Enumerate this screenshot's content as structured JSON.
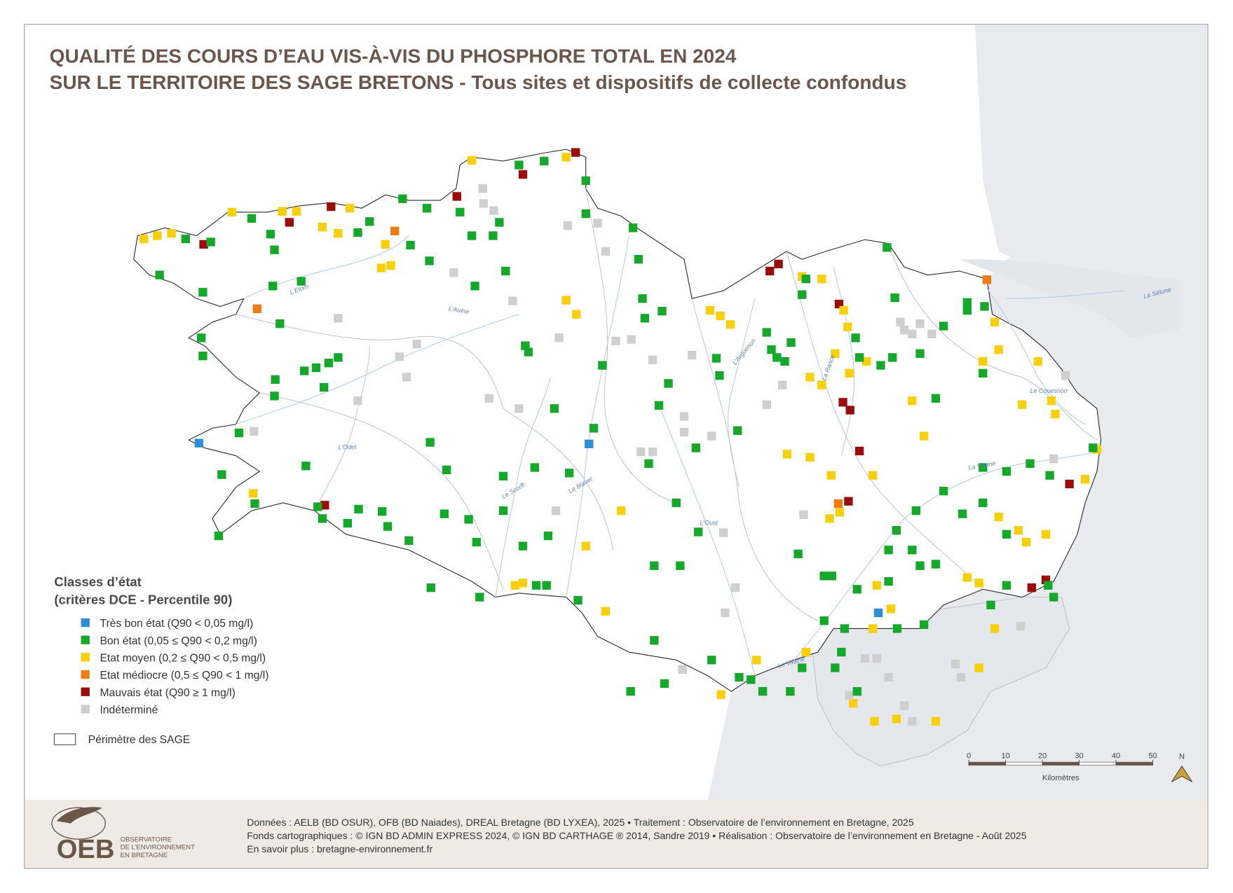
{
  "header": {
    "title_lines": [
      "QUALITÉ DES COURS D’EAU VIS-À-VIS DU PHOSPHORE TOTAL EN 2024",
      "SUR LE TERRITOIRE DES SAGE BRETONS - Tous sites et dispositifs de collecte confondus"
    ]
  },
  "legend": {
    "title_lines": [
      "Classes d’état",
      "(critères DCE - Percentile 90)"
    ],
    "items": [
      {
        "label": "Très bon état (Q90 < 0,05 mg/l)",
        "color": "#2f8fd6"
      },
      {
        "label": "Bon état (0,05 ≤ Q90 < 0,2 mg/l)",
        "color": "#16a82a"
      },
      {
        "label": "Etat moyen (0,2 ≤ Q90 < 0,5 mg/l)",
        "color": "#f7cf0c"
      },
      {
        "label": "Etat médiocre (0,5 ≤ Q90 < 1 mg/l)",
        "color": "#f07c14"
      },
      {
        "label": "Mauvais état (Q90 ≥ 1 mg/l)",
        "color": "#9a0d0d"
      },
      {
        "label": "Indéterminé",
        "color": "#cfcfcf"
      }
    ],
    "perimeter": "Périmètre des SAGE"
  },
  "map": {
    "river_labels": [
      "L'Elorn",
      "L'Aulne",
      "L'Odet",
      "Le Scorff",
      "Le Blavet",
      "L'Oust",
      "La Vilaine",
      "La Rance",
      "Le Couesnon",
      "L'Arguenon",
      "La Sélune",
      "La Vilaine"
    ]
  },
  "scale": {
    "ticks": [
      0,
      10,
      20,
      30,
      40,
      50
    ],
    "unit": "Kilomètres",
    "north": "N"
  },
  "footer": {
    "lines": [
      "Données : AELB (BD OSUR), OFB (BD Naiades), DREAL Bretagne (BD LYXEA), 2025 • Traitement : Observatoire de l’environnement en Bretagne, 2025",
      "Fonds cartographiques : © IGN BD ADMIN EXPRESS 2024, © IGN BD CARTHAGE ® 2014, Sandre 2019 • Réalisation : Observatoire de l’environnement en Bretagne - Août 2025",
      "En savoir plus : bretagne-environnement.fr"
    ]
  },
  "logo": {
    "acronym": "OEB",
    "lines": [
      "OBSERVATOIRE",
      "DE L’ENVIRONNEMENT",
      "EN BRETAGNE"
    ]
  }
}
